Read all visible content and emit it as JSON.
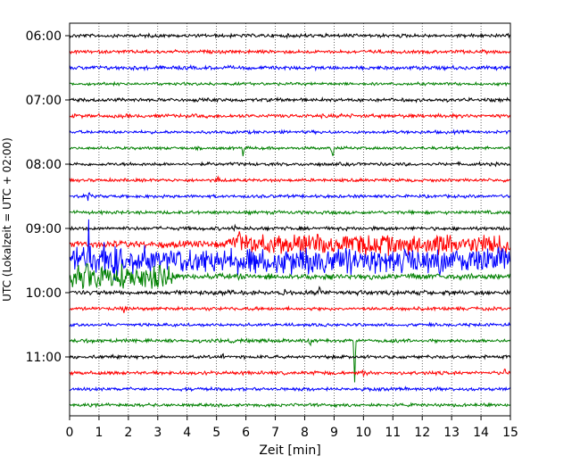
{
  "chart_data": {
    "type": "line",
    "subtype": "helicorder",
    "title": "",
    "xlabel": "Zeit  [min]",
    "ylabel": "UTC (Lokalzeit = UTC + 02:00)",
    "xlim": [
      0,
      15
    ],
    "x_ticks": [
      "0",
      "1",
      "2",
      "3",
      "4",
      "5",
      "6",
      "7",
      "8",
      "9",
      "10",
      "11",
      "12",
      "13",
      "14",
      "15"
    ],
    "y_ticks": [
      {
        "label": "06:00",
        "row": 0
      },
      {
        "label": "07:00",
        "row": 4
      },
      {
        "label": "08:00",
        "row": 8
      },
      {
        "label": "09:00",
        "row": 12
      },
      {
        "label": "10:00",
        "row": 16
      },
      {
        "label": "11:00",
        "row": 20
      }
    ],
    "rows_per_hour": 4,
    "minutes_per_row": 15,
    "start_time": "06:00",
    "trace_colors": [
      "#000000",
      "#ff0000",
      "#0000ff",
      "#008000"
    ],
    "grid": "vertical dotted lines at every minute",
    "traces": [
      {
        "start": "06:00",
        "color": "#000000",
        "noise": 1.6,
        "events": []
      },
      {
        "start": "06:15",
        "color": "#ff0000",
        "noise": 1.5,
        "events": []
      },
      {
        "start": "06:30",
        "color": "#0000ff",
        "noise": 1.7,
        "events": []
      },
      {
        "start": "06:45",
        "color": "#008000",
        "noise": 1.3,
        "events": []
      },
      {
        "start": "07:00",
        "color": "#000000",
        "noise": 1.6,
        "events": []
      },
      {
        "start": "07:15",
        "color": "#ff0000",
        "noise": 1.7,
        "events": [
          {
            "t": 9.3,
            "amp": 4
          }
        ]
      },
      {
        "start": "07:30",
        "color": "#0000ff",
        "noise": 1.4,
        "events": []
      },
      {
        "start": "07:45",
        "color": "#008000",
        "noise": 1.3,
        "events": [
          {
            "t": 5.9,
            "amp": 9
          },
          {
            "t": 8.95,
            "amp": 16
          }
        ]
      },
      {
        "start": "08:00",
        "color": "#000000",
        "noise": 1.5,
        "events": []
      },
      {
        "start": "08:15",
        "color": "#ff0000",
        "noise": 1.4,
        "events": [
          {
            "t": 5.05,
            "amp": 11
          }
        ]
      },
      {
        "start": "08:30",
        "color": "#0000ff",
        "noise": 1.4,
        "events": [
          {
            "t": 0.65,
            "amp": 7
          }
        ]
      },
      {
        "start": "08:45",
        "color": "#008000",
        "noise": 1.5,
        "events": []
      },
      {
        "start": "09:00",
        "color": "#000000",
        "noise": 1.6,
        "events": [
          {
            "t": 5.6,
            "amp": 6
          }
        ]
      },
      {
        "start": "09:15",
        "color": "#ff0000",
        "noise": 3.0,
        "burst": {
          "from": 5.4,
          "to": 15,
          "amp": 10
        },
        "events": [
          {
            "t": 5.75,
            "amp": 22
          }
        ]
      },
      {
        "start": "09:30",
        "color": "#0000ff",
        "noise": 3.0,
        "burst": {
          "from": 0,
          "to": 15,
          "amp": 14
        },
        "events": [
          {
            "t": 0.65,
            "amp": 45
          },
          {
            "t": 1.2,
            "amp": 40
          },
          {
            "t": 1.5,
            "amp": 30
          }
        ]
      },
      {
        "start": "09:45",
        "color": "#008000",
        "noise": 2.5,
        "burst": {
          "from": 0,
          "to": 3.5,
          "amp": 13
        },
        "events": [
          {
            "t": 0.6,
            "amp": 15
          }
        ]
      },
      {
        "start": "10:00",
        "color": "#000000",
        "noise": 2.0,
        "events": [
          {
            "t": 7.3,
            "amp": 6
          },
          {
            "t": 8.5,
            "amp": 6
          }
        ]
      },
      {
        "start": "10:15",
        "color": "#ff0000",
        "noise": 1.5,
        "events": [
          {
            "t": 1.85,
            "amp": 5
          }
        ]
      },
      {
        "start": "10:30",
        "color": "#0000ff",
        "noise": 1.4,
        "events": []
      },
      {
        "start": "10:45",
        "color": "#008000",
        "noise": 1.6,
        "events": [
          {
            "t": 8.2,
            "amp": 5
          },
          {
            "t": 9.7,
            "amp": 46
          }
        ]
      },
      {
        "start": "11:00",
        "color": "#000000",
        "noise": 1.5,
        "events": [
          {
            "t": 5.2,
            "amp": 5
          }
        ]
      },
      {
        "start": "11:15",
        "color": "#ff0000",
        "noise": 1.6,
        "events": [
          {
            "t": 10.0,
            "amp": 5
          },
          {
            "t": 14.8,
            "amp": 5
          }
        ]
      },
      {
        "start": "11:30",
        "color": "#0000ff",
        "noise": 1.5,
        "events": []
      },
      {
        "start": "11:45",
        "color": "#008000",
        "noise": 1.4,
        "events": []
      }
    ]
  }
}
